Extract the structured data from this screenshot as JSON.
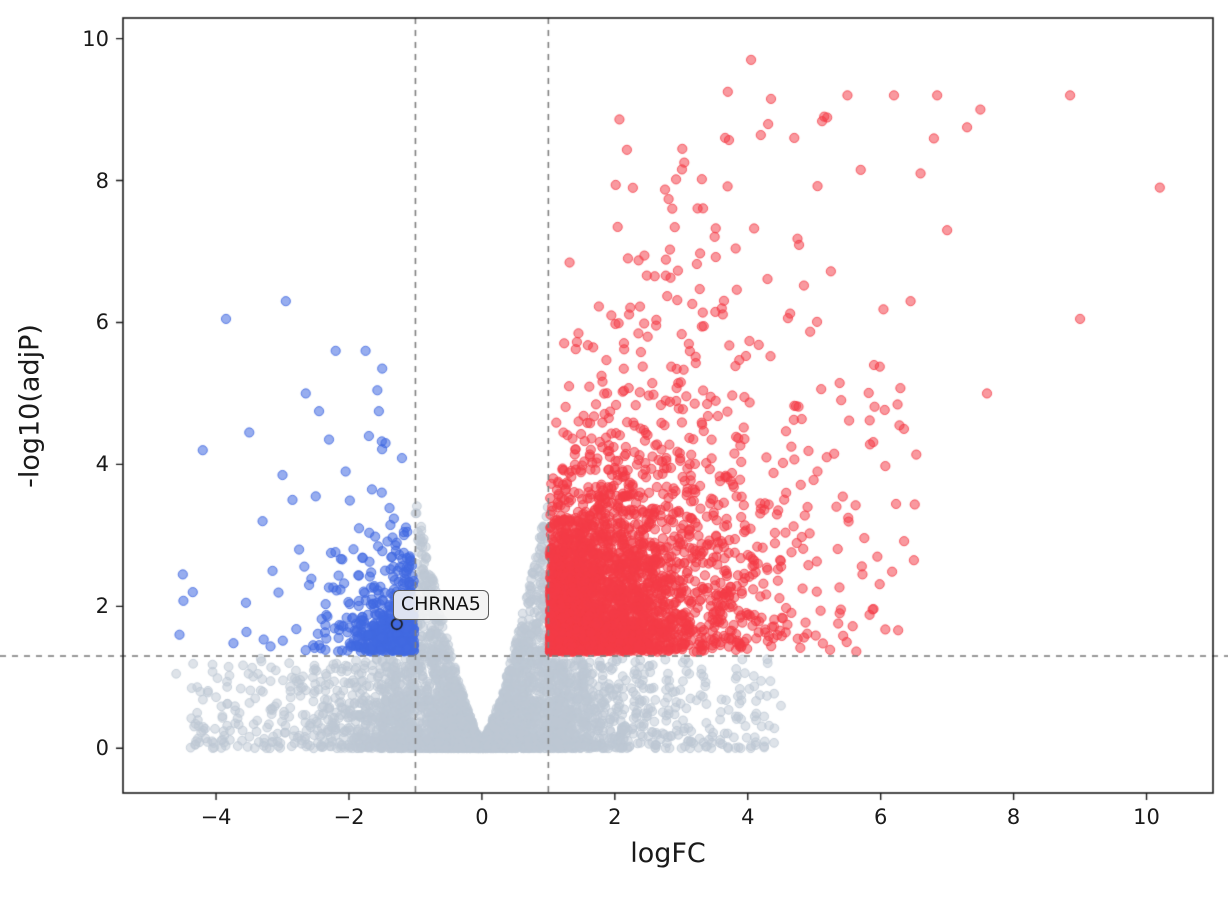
{
  "chart_data": {
    "type": "scatter",
    "title": "",
    "xlabel": "logFC",
    "ylabel": "-log10(adjP)",
    "xlim": [
      -5.4,
      11.0
    ],
    "ylim": [
      -0.63,
      10.29
    ],
    "x_ticks": [
      -4,
      -2,
      0,
      2,
      4,
      6,
      8,
      10
    ],
    "y_ticks": [
      0,
      2,
      4,
      6,
      8,
      10
    ],
    "grid": false,
    "legend": null,
    "background_color": "#ffffff",
    "spine_color": "#1a1a1a",
    "threshold_lines": {
      "vertical_x": [
        -1,
        1
      ],
      "horizontal_y": 1.3,
      "style": "dashed",
      "color": "#7f7f7f"
    },
    "annotation": {
      "label": "CHRNA5",
      "x": -1.28,
      "y": 1.75,
      "marker": "open-circle",
      "marker_color": "#1a1a1a"
    },
    "series": [
      {
        "name": "not-significant",
        "color_rgb": [
          190,
          200,
          212
        ],
        "alpha": 0.5,
        "marker_radius": 4.4,
        "n": 4200,
        "gen": {
          "kind": "valley",
          "x_sigma": 0.95,
          "x_uniform_frac": 0.15,
          "x_uniform_range": [
            -4.4,
            4.4
          ],
          "x_clip": [
            -4.65,
            4.65
          ],
          "cap_inside_a": 0.12,
          "cap_inside_b": 3.45,
          "cap_inside_pow": 1.35,
          "inside_halfwidth": 1.0,
          "cap_outside": 1.27,
          "y_pow": 1.7
        },
        "extra_points": [
          [
            -4.6,
            1.05
          ],
          [
            -4.0,
            0.72
          ],
          [
            3.9,
            0.75
          ],
          [
            4.3,
            1.2
          ],
          [
            -3.6,
            0.25
          ],
          [
            3.3,
            1.05
          ],
          [
            -2.9,
            1.2
          ],
          [
            4.5,
            0.6
          ],
          [
            -4.3,
            0.1
          ]
        ]
      },
      {
        "name": "down-regulated",
        "color_rgb": [
          65,
          105,
          225
        ],
        "alpha": 0.55,
        "marker_radius": 4.6,
        "n": 560,
        "gen": {
          "kind": "tail",
          "x_sign": -1,
          "x_offset": 1.02,
          "x_exp_mean": 0.42,
          "x_clip_abs": 4.7,
          "y_base": 1.36,
          "y_exp_mean": 0.7,
          "y_scale_base": 0.55,
          "y_slope": 0.18,
          "y_cap": 6.35
        },
        "extra_points": [
          [
            -4.55,
            1.6
          ],
          [
            -4.35,
            2.2
          ],
          [
            -4.2,
            4.2
          ],
          [
            -3.85,
            6.05
          ],
          [
            -3.5,
            4.45
          ],
          [
            -3.55,
            2.05
          ],
          [
            -2.95,
            6.3
          ],
          [
            -3.3,
            3.2
          ],
          [
            -2.65,
            5.0
          ],
          [
            -3.0,
            3.85
          ],
          [
            -2.75,
            2.8
          ],
          [
            -2.45,
            4.75
          ],
          [
            -2.2,
            5.6
          ],
          [
            -2.3,
            4.35
          ],
          [
            -1.75,
            5.6
          ],
          [
            -1.5,
            5.35
          ],
          [
            -1.55,
            4.75
          ],
          [
            -1.7,
            4.4
          ],
          [
            -1.45,
            4.3
          ],
          [
            -2.05,
            3.9
          ],
          [
            -2.5,
            3.55
          ],
          [
            -2.85,
            3.5
          ],
          [
            -3.15,
            2.5
          ],
          [
            -2.6,
            2.3
          ],
          [
            -4.5,
            2.45
          ]
        ]
      },
      {
        "name": "up-regulated",
        "color_rgb": [
          244,
          60,
          70
        ],
        "alpha": 0.52,
        "marker_radius": 4.6,
        "n": 3400,
        "gen": {
          "kind": "tail",
          "x_sign": 1,
          "x_offset": 1.02,
          "x_exp_mean": 1.05,
          "x_clip_abs": 6.9,
          "y_base": 1.36,
          "y_exp_mean": 1.0,
          "y_scale_base": 0.55,
          "y_slope": 0.5,
          "y_cap": 9.65
        },
        "extra_points": [
          [
            10.2,
            7.9
          ],
          [
            8.85,
            9.2
          ],
          [
            9.0,
            6.05
          ],
          [
            7.5,
            9.0
          ],
          [
            7.3,
            8.75
          ],
          [
            6.85,
            9.2
          ],
          [
            7.6,
            5.0
          ],
          [
            6.6,
            8.1
          ],
          [
            7.0,
            7.3
          ],
          [
            6.5,
            2.65
          ],
          [
            5.95,
            2.7
          ],
          [
            4.05,
            9.7
          ],
          [
            4.35,
            9.15
          ],
          [
            3.7,
            9.25
          ],
          [
            5.5,
            9.2
          ],
          [
            5.15,
            8.9
          ],
          [
            5.7,
            8.15
          ],
          [
            6.2,
            9.2
          ],
          [
            4.7,
            8.6
          ],
          [
            6.35,
            4.5
          ],
          [
            5.9,
            5.4
          ],
          [
            6.45,
            6.3
          ],
          [
            5.3,
            4.15
          ],
          [
            4.9,
            3.4
          ]
        ]
      }
    ],
    "random_seed": 20240613
  }
}
